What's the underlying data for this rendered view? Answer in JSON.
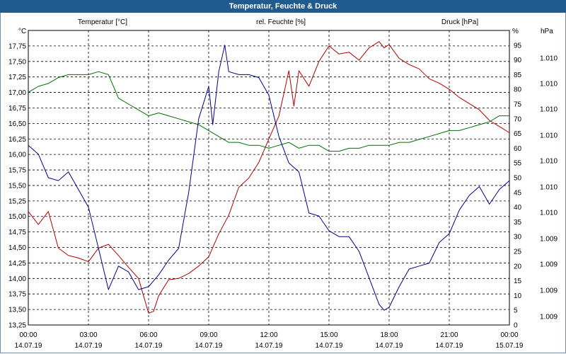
{
  "window": {
    "title": "Temperatur, Feuchte & Druck"
  },
  "chart_data": {
    "type": "line",
    "title": "Temperatur, Feuchte & Druck",
    "x": {
      "unit": "hours since 14.07.19 00:00",
      "range": [
        0,
        24
      ],
      "tick_labels": [
        {
          "time": "00:00",
          "date": "14.07.19"
        },
        {
          "time": "03:00",
          "date": "14.07.19"
        },
        {
          "time": "06:00",
          "date": "14.07.19"
        },
        {
          "time": "09:00",
          "date": "14.07.19"
        },
        {
          "time": "12:00",
          "date": "14.07.19"
        },
        {
          "time": "15:00",
          "date": "14.07.19"
        },
        {
          "time": "18:00",
          "date": "14.07.19"
        },
        {
          "time": "21:00",
          "date": "14.07.19"
        },
        {
          "time": "00:00",
          "date": "15.07.19"
        }
      ]
    },
    "axes": {
      "left": {
        "unit_label": "°C",
        "series_label": "Temperatur [°C]",
        "range": [
          13.25,
          18.0
        ],
        "ticks": [
          "13,25",
          "13,50",
          "13,75",
          "14,00",
          "14,25",
          "14,50",
          "14,75",
          "15,00",
          "15,25",
          "15,50",
          "15,75",
          "16,00",
          "16,25",
          "16,50",
          "16,75",
          "17,00",
          "17,25",
          "17,50",
          "17,75"
        ],
        "color": "#b00000"
      },
      "right1": {
        "unit_label": "%",
        "series_label": "rel. Feuchte [%]",
        "range": [
          0,
          100
        ],
        "ticks": [
          "0",
          "5",
          "10",
          "15",
          "20",
          "25",
          "30",
          "35",
          "40",
          "45",
          "50",
          "55",
          "60",
          "65",
          "70",
          "75",
          "80",
          "85",
          "90",
          "95"
        ],
        "color": "#007000"
      },
      "right2": {
        "unit_label": "hPa",
        "series_label": "Druck [hPa]",
        "ticks": [
          "1.009",
          "1.009",
          "1.009",
          "1.009",
          "1.010",
          "1.010",
          "1.010",
          "1.010",
          "1.010",
          "1.010",
          "1.010"
        ],
        "color": "#000090"
      }
    },
    "grid": true,
    "series": [
      {
        "name": "Temperatur [°C]",
        "axis": "left",
        "color": "#b00000",
        "x": [
          0,
          0.5,
          1,
          1.5,
          2,
          2.5,
          3,
          3.5,
          4,
          4.5,
          5,
          5.5,
          6,
          6.25,
          6.5,
          7,
          7.5,
          8,
          8.5,
          9,
          9.5,
          10,
          10.5,
          11,
          11.5,
          12,
          12.5,
          13,
          13.25,
          13.5,
          14,
          14.5,
          15,
          15.5,
          16,
          16.5,
          17,
          17.5,
          17.75,
          18,
          18.5,
          19,
          19.5,
          20,
          20.5,
          21,
          21.5,
          22,
          22.5,
          23,
          23.5,
          24
        ],
        "values": [
          15.08,
          14.87,
          15.08,
          14.49,
          14.37,
          14.33,
          14.27,
          14.49,
          14.55,
          14.37,
          14.18,
          14.0,
          13.44,
          13.47,
          13.72,
          13.98,
          14.0,
          14.08,
          14.2,
          14.35,
          14.72,
          15.02,
          15.47,
          15.62,
          15.87,
          16.25,
          16.62,
          17.35,
          16.78,
          17.35,
          17.1,
          17.5,
          17.75,
          17.62,
          17.65,
          17.52,
          17.72,
          17.82,
          17.72,
          17.77,
          17.55,
          17.45,
          17.38,
          17.22,
          17.15,
          17.05,
          16.92,
          16.82,
          16.72,
          16.55,
          16.45,
          16.35
        ]
      },
      {
        "name": "rel. Feuchte [%]",
        "axis": "right1",
        "color": "#007000",
        "x": [
          0,
          0.5,
          1,
          1.5,
          2,
          2.5,
          3,
          3.5,
          4,
          4.5,
          5,
          5.5,
          6,
          6.5,
          7,
          7.5,
          8,
          8.5,
          9,
          9.5,
          10,
          10.5,
          11,
          11.5,
          12,
          12.5,
          13,
          13.5,
          14,
          14.5,
          15,
          15.5,
          16,
          16.5,
          17,
          17.5,
          18,
          18.5,
          19,
          19.5,
          20,
          20.5,
          21,
          21.5,
          22,
          22.5,
          23,
          23.5,
          24
        ],
        "values": [
          79,
          81,
          82,
          84,
          85,
          85,
          85,
          86,
          85,
          77,
          75,
          73,
          71,
          72,
          71,
          70,
          69,
          68,
          66,
          64,
          62,
          62,
          61,
          61,
          60,
          61,
          62,
          60,
          61,
          61,
          59,
          59,
          60,
          60,
          61,
          61,
          61,
          62,
          62,
          63,
          64,
          65,
          66,
          66,
          67,
          68,
          69,
          71,
          71
        ]
      },
      {
        "name": "Druck [hPa]",
        "axis": "right2",
        "color": "#000090",
        "plot_percent": true,
        "x": [
          0,
          0.5,
          1,
          1.5,
          2,
          2.5,
          3,
          3.5,
          4,
          4.5,
          5,
          5.5,
          6,
          6.5,
          7,
          7.5,
          8,
          8.5,
          9,
          9.2,
          9.5,
          9.8,
          10,
          10.5,
          11,
          11.5,
          12,
          12.5,
          13,
          13.5,
          14,
          14.5,
          15,
          15.5,
          16,
          16.5,
          17,
          17.5,
          17.75,
          18,
          18.5,
          19,
          19.5,
          20,
          20.5,
          21,
          21.5,
          22,
          22.5,
          23,
          23.5,
          24
        ],
        "values": [
          61,
          58,
          50,
          49,
          52,
          46,
          40,
          26,
          12,
          20,
          18,
          12,
          13,
          17,
          22,
          26,
          45,
          70,
          81,
          68,
          86,
          95,
          86,
          85,
          85,
          84,
          78,
          64,
          55,
          52,
          38,
          37,
          32,
          30,
          30,
          25,
          16,
          7,
          5,
          6,
          13,
          19,
          20,
          21,
          28,
          31,
          39,
          44,
          47,
          41,
          46,
          49
        ]
      }
    ]
  }
}
